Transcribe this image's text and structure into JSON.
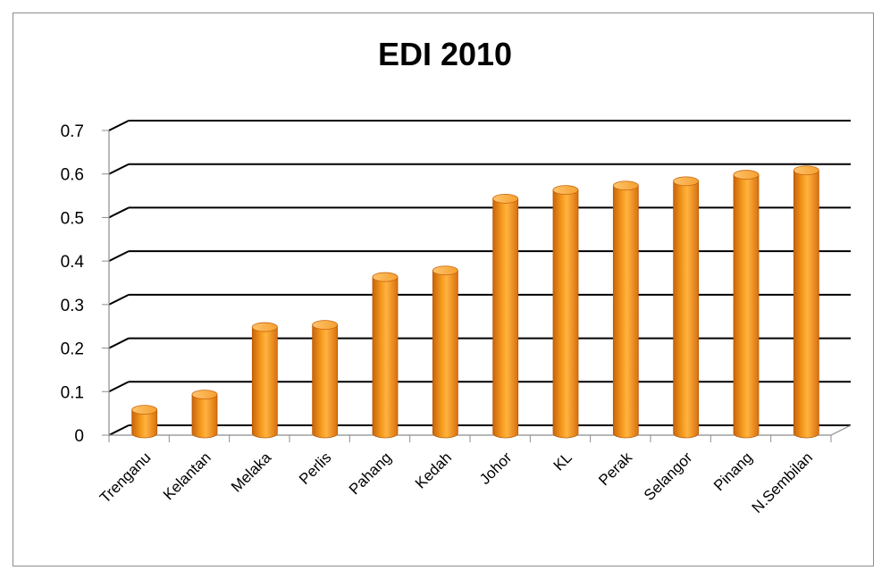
{
  "chart_data": {
    "type": "bar",
    "title": "EDI 2010",
    "xlabel": "",
    "ylabel": "",
    "categories": [
      "Trenganu",
      "Kelantan",
      "Melaka",
      "Perlis",
      "Pahang",
      "Kedah",
      "Johor",
      "KL",
      "Perak",
      "Selangor",
      "Pinang",
      "N.Sembilan"
    ],
    "values": [
      0.05,
      0.085,
      0.24,
      0.245,
      0.355,
      0.37,
      0.535,
      0.555,
      0.565,
      0.575,
      0.59,
      0.6
    ],
    "ylim": [
      0,
      0.7
    ],
    "yticks": [
      "0",
      "0.1",
      "0.2",
      "0.3",
      "0.4",
      "0.5",
      "0.6",
      "0.7"
    ],
    "grid": true,
    "legend": "none",
    "bar_shape": "3d-cylinder",
    "colors": {
      "bar": "#f59a1e",
      "bar_dark": "#c8640a",
      "bar_light": "#ffc36a",
      "grid": "#000000"
    }
  }
}
